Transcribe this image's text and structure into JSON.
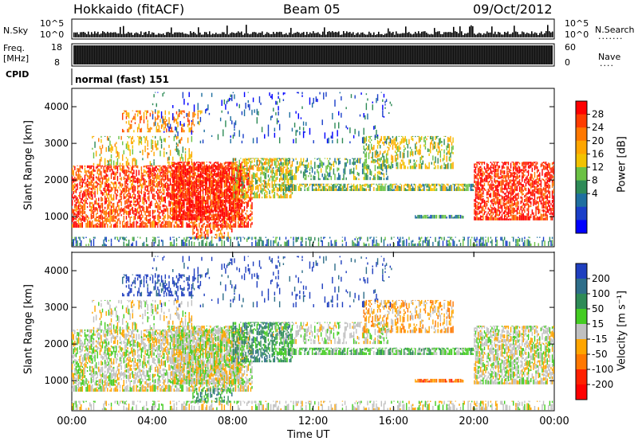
{
  "header": {
    "station": "Hokkaido (fitACF)",
    "beam": "Beam 05",
    "date": "09/Oct/2012"
  },
  "status_panels": {
    "nsky_label": "N.Sky",
    "nsky_ticks": [
      "10^5",
      "10^0"
    ],
    "nsearch_label": "N.Search",
    "nsearch_ticks": [
      "10^5",
      "10^0"
    ],
    "freq_label": "Freq.",
    "freq_unit": "[MHz]",
    "freq_ticks": [
      "18",
      "8"
    ],
    "nave_label": "Nave",
    "nave_ticks": [
      "60",
      "0"
    ],
    "cpid_label": "CPID",
    "cpid_value": "normal (fast) 151"
  },
  "chart_data": [
    {
      "type": "heatmap",
      "name": "power-panel",
      "ylabel": "Slant Range [km]",
      "xlabel": "",
      "y_ticks": [
        1000,
        2000,
        3000,
        4000
      ],
      "ylim": [
        180,
        4500
      ],
      "colorbar": {
        "label": "Power [dB]",
        "ticks": [
          "28",
          "24",
          "20",
          "16",
          "12",
          "8",
          "4"
        ],
        "colors": [
          "#ff0000",
          "#ff3c00",
          "#ff7800",
          "#ffa600",
          "#f2c200",
          "#6bc244",
          "#2e8b57",
          "#1f6fa0",
          "#1a3fc9",
          "#0000ff"
        ]
      }
    },
    {
      "type": "heatmap",
      "name": "velocity-panel",
      "ylabel": "Slant Range [km]",
      "xlabel": "Time UT",
      "x_ticks": [
        "00:00",
        "04:00",
        "08:00",
        "12:00",
        "16:00",
        "20:00",
        "00:00"
      ],
      "y_ticks": [
        1000,
        2000,
        3000,
        4000
      ],
      "ylim": [
        180,
        4500
      ],
      "colorbar": {
        "label": "Velocity [m s⁻¹]",
        "ticks": [
          "200",
          "100",
          "50",
          "15",
          "-15",
          "-50",
          "-100",
          "-200"
        ],
        "colors": [
          "#1f3fbf",
          "#2e6e8a",
          "#2e8b57",
          "#44cc22",
          "#c0c0c0",
          "#ffa500",
          "#ff7800",
          "#ff2000",
          "#ff0000"
        ]
      }
    }
  ]
}
